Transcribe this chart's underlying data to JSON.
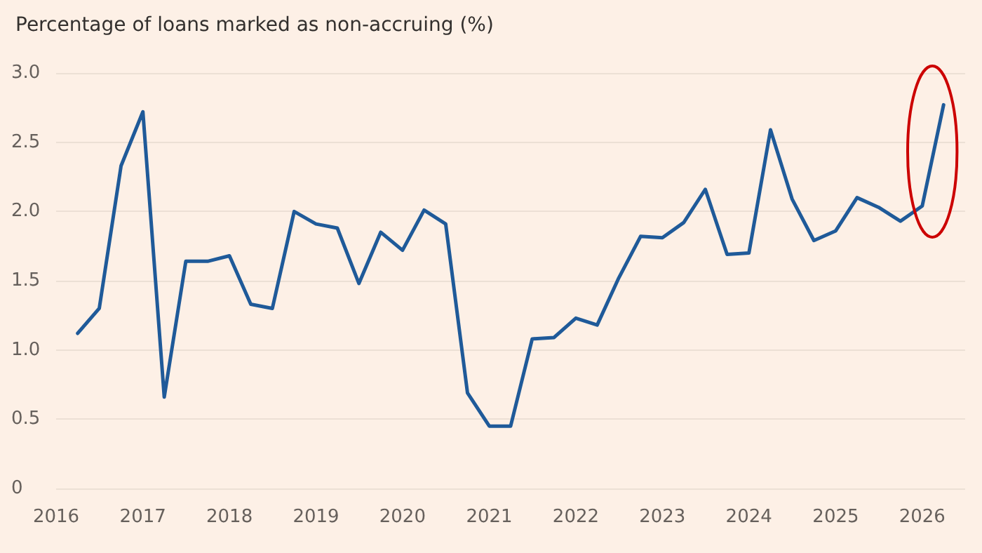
{
  "chart_data": {
    "type": "line",
    "title": "Percentage of loans marked as non-accruing (%)",
    "x": [
      "2016-04",
      "2016-07",
      "2016-10",
      "2017-01",
      "2017-04",
      "2017-07",
      "2017-10",
      "2018-01",
      "2018-04",
      "2018-07",
      "2018-10",
      "2019-01",
      "2019-04",
      "2019-07",
      "2019-10",
      "2020-01",
      "2020-04",
      "2020-07",
      "2020-10",
      "2021-01",
      "2021-04",
      "2021-07",
      "2021-10",
      "2022-01",
      "2022-04",
      "2022-07",
      "2022-10",
      "2023-01",
      "2023-04",
      "2023-07",
      "2023-10",
      "2024-01",
      "2024-04",
      "2024-07",
      "2024-10",
      "2025-01",
      "2025-04",
      "2025-07",
      "2025-10",
      "2026-01",
      "2026-04"
    ],
    "series": [
      {
        "color": "#1f5a99",
        "values": [
          1.12,
          1.3,
          2.33,
          2.72,
          0.66,
          1.64,
          1.64,
          1.68,
          1.33,
          1.3,
          2.0,
          1.91,
          1.88,
          1.48,
          1.85,
          1.72,
          2.01,
          1.91,
          0.69,
          0.45,
          0.45,
          1.08,
          1.09,
          1.23,
          1.18,
          1.52,
          1.82,
          1.81,
          1.92,
          2.16,
          1.69,
          1.7,
          2.59,
          2.09,
          1.79,
          1.86,
          2.1,
          2.03,
          1.93,
          2.04,
          2.77
        ]
      }
    ],
    "xlim": [
      "2016-01",
      "2026-07"
    ],
    "xticks": [
      {
        "value": "2016-01",
        "label": "2016"
      },
      {
        "value": "2017-01",
        "label": "2017"
      },
      {
        "value": "2018-01",
        "label": "2018"
      },
      {
        "value": "2019-01",
        "label": "2019"
      },
      {
        "value": "2020-01",
        "label": "2020"
      },
      {
        "value": "2021-01",
        "label": "2021"
      },
      {
        "value": "2022-01",
        "label": "2022"
      },
      {
        "value": "2023-01",
        "label": "2023"
      },
      {
        "value": "2024-01",
        "label": "2024"
      },
      {
        "value": "2025-01",
        "label": "2025"
      },
      {
        "value": "2026-01",
        "label": "2026"
      }
    ],
    "ylim": [
      0,
      3.0
    ],
    "yticks": [
      0,
      {
        "value": 0.5,
        "label": "0.5"
      },
      {
        "value": 1,
        "label": "1.0"
      },
      {
        "value": 1.5,
        "label": "1.5"
      },
      {
        "value": 2,
        "label": "2.0"
      },
      {
        "value": 2.5,
        "label": "2.5"
      },
      {
        "value": 3,
        "label": "3.0"
      }
    ],
    "grid": "y",
    "marker": "none",
    "line_style": "solid"
  }
}
